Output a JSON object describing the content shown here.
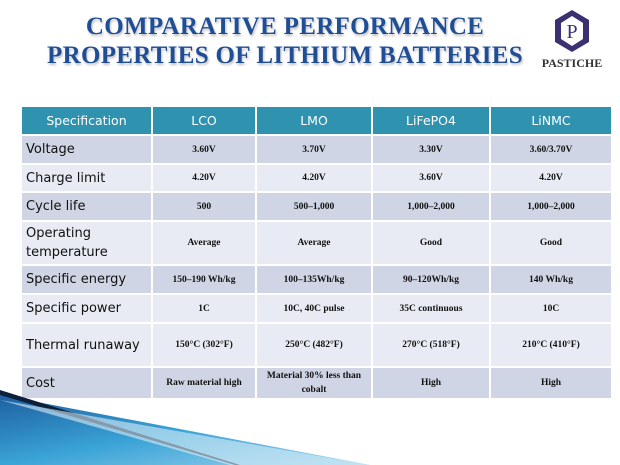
{
  "title_line1": "COMPARATIVE PERFORMANCE",
  "title_line2": "PROPERTIES OF LITHIUM BATTERIES",
  "logo": {
    "letter": "P",
    "name": "PASTICHE"
  },
  "table": {
    "headers": [
      "Specification",
      "LCO",
      "LMO",
      "LiFePO4",
      "LiNMC"
    ],
    "rows": [
      {
        "spec": "Voltage",
        "values": [
          "3.60V",
          "3.70V",
          "3.30V",
          "3.60/3.70V"
        ]
      },
      {
        "spec": "Charge limit",
        "values": [
          "4.20V",
          "4.20V",
          "3.60V",
          "4.20V"
        ]
      },
      {
        "spec": "Cycle life",
        "values": [
          "500",
          "500–1,000",
          "1,000–2,000",
          "1,000–2,000"
        ]
      },
      {
        "spec": "Operating temperature",
        "values": [
          "Average",
          "Average",
          "Good",
          "Good"
        ]
      },
      {
        "spec": "Specific energy",
        "values": [
          "150–190 Wh/kg",
          "100–135Wh/kg",
          "90–120Wh/kg",
          "140 Wh/kg"
        ]
      },
      {
        "spec": "Specific power",
        "values": [
          "1C",
          "10C, 40C pulse",
          "35C continuous",
          "10C"
        ]
      },
      {
        "spec": "Thermal runaway",
        "values": [
          "150°C (302°F)",
          "250°C (482°F)",
          "270°C (518°F)",
          "210°C (410°F)"
        ]
      },
      {
        "spec": "Cost",
        "values": [
          "Raw material high",
          "Material 30% less than cobalt",
          "High",
          "High"
        ]
      }
    ]
  },
  "colors": {
    "header": "#2f93b0",
    "title": "#1f4e96",
    "row_dark": "#cfd5e4",
    "row_light": "#e8ebf3"
  }
}
